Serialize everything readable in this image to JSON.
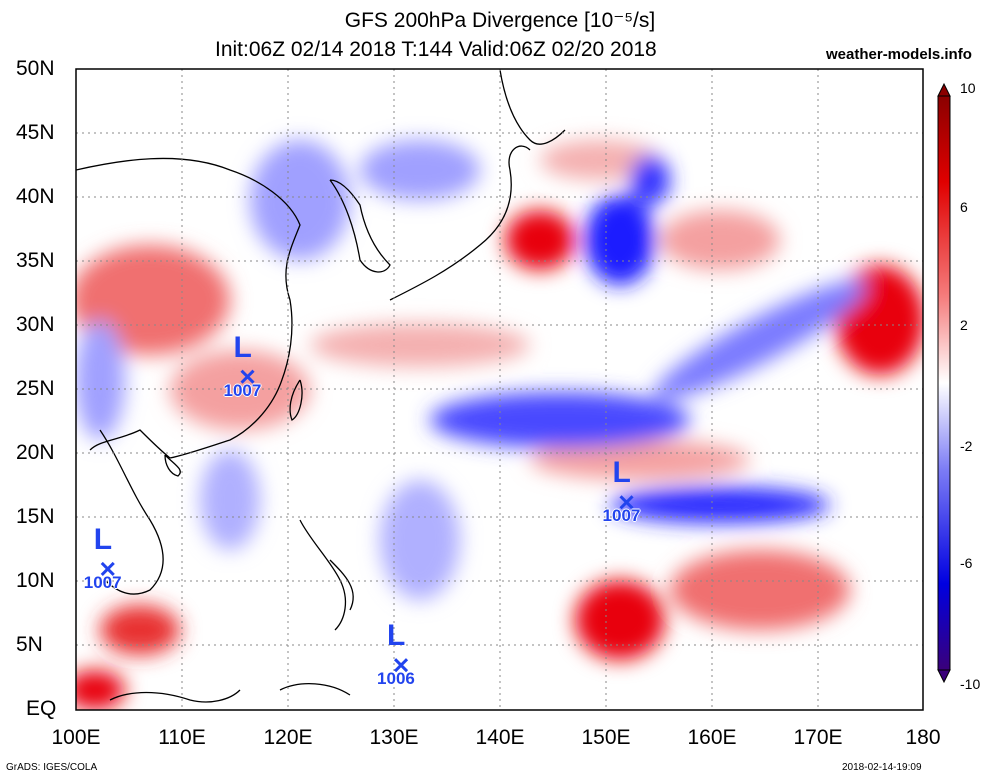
{
  "title_line1": "GFS 200hPa Divergence [10⁻⁵/s]",
  "title_line2": "Init:06Z 02/14 2018 T:144 Valid:06Z 02/20 2018",
  "site": "weather-models.info",
  "credit": "GrADS: IGES/COLA",
  "timestamp": "2018-02-14-19:09",
  "lat_labels": [
    "50N",
    "45N",
    "40N",
    "35N",
    "30N",
    "25N",
    "20N",
    "15N",
    "10N",
    "5N",
    "EQ"
  ],
  "lon_labels": [
    "100E",
    "110E",
    "120E",
    "130E",
    "140E",
    "150E",
    "160E",
    "170E",
    "180"
  ],
  "colorbar_labels": [
    "10",
    "6",
    "2",
    "-2",
    "-6",
    "-10"
  ],
  "lows": [
    {
      "letter": "L",
      "pressure": "1007",
      "lon": 116.2,
      "lat": 26
    },
    {
      "letter": "L",
      "pressure": "1007",
      "lon": 103,
      "lat": 11
    },
    {
      "letter": "L",
      "pressure": "1007",
      "lon": 152,
      "lat": 16.2
    },
    {
      "letter": "L",
      "pressure": "1006",
      "lon": 130.7,
      "lat": 3.5
    }
  ],
  "colors": {
    "positive": "#e8000b",
    "negative": "#1a1aff",
    "low_marker": "#2244ee"
  }
}
